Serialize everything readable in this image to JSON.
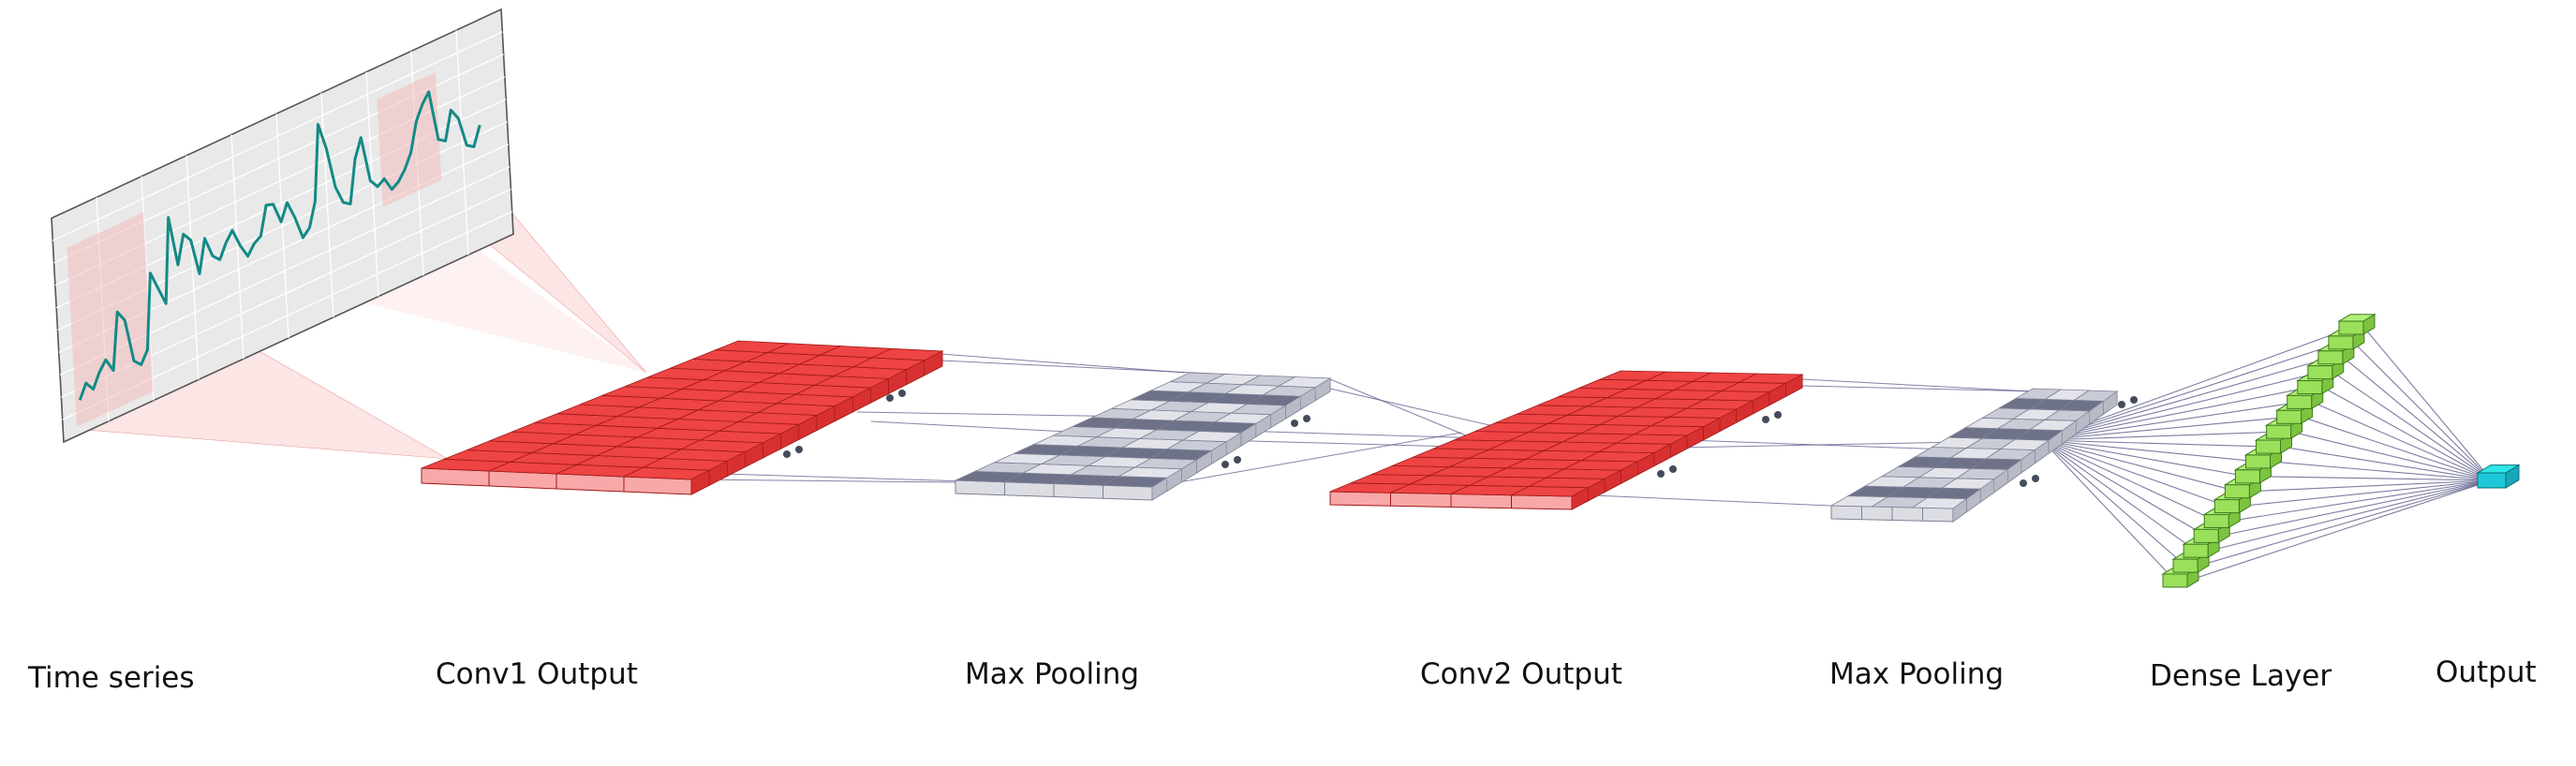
{
  "labels": {
    "time_series": "Time series",
    "conv1": "Conv1 Output",
    "pool1": "Max Pooling",
    "conv2": "Conv2 Output",
    "pool2": "Max Pooling",
    "dense": "Dense Layer",
    "output": "Output"
  },
  "colors": {
    "series_line": "#138a86",
    "panel_fill": "#e9e9e9",
    "panel_grid": "#ffffff",
    "receptive_field": "#f7c6c6",
    "conv_top": "#ee4444",
    "conv_front": "#f8a8a8",
    "conv_side": "#d83030",
    "pool_top": "#c9ccd6",
    "pool_dark": "#6e7288",
    "pool_front": "#dcdde2",
    "connection": "#5a5a8a",
    "dense_top": "#b2f07a",
    "dense_front": "#9be05a",
    "output_top": "#2fe5e5",
    "output_front": "#1fc8d8"
  },
  "series": [
    30,
    36,
    32,
    38,
    42,
    36,
    60,
    55,
    36,
    33,
    38,
    70,
    62,
    54,
    90,
    68,
    80,
    76,
    60,
    74,
    65,
    62,
    68,
    72,
    64,
    58,
    62,
    64,
    76,
    75,
    66,
    73,
    65,
    55,
    58,
    68,
    100,
    88,
    70,
    62,
    60,
    78,
    86,
    66,
    62,
    64,
    58,
    60,
    64,
    70,
    82,
    88,
    92,
    70,
    68,
    80,
    75,
    62,
    60,
    68
  ]
}
